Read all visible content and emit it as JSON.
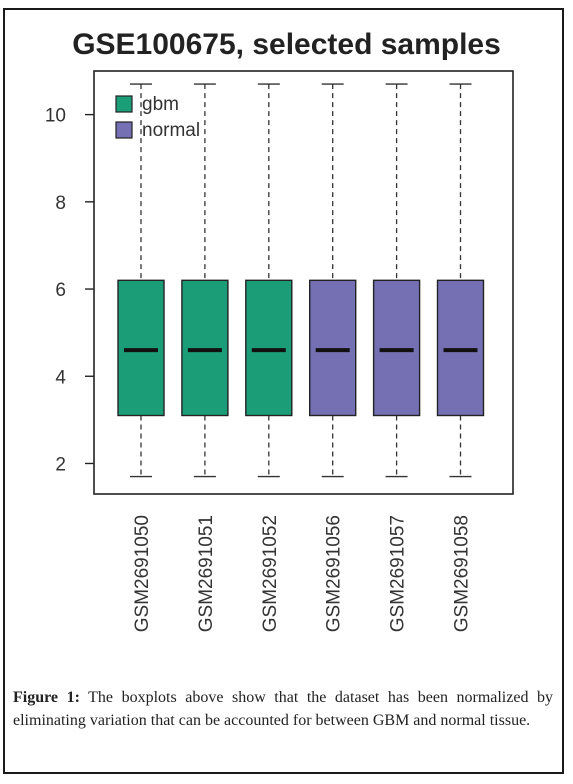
{
  "figure": {
    "caption_label": "Figure 1:",
    "caption_text": " The boxplots above show that the dataset has been normalized by eliminating variation that can be accounted for between GBM and normal tissue."
  },
  "chart_data": {
    "type": "boxplot",
    "title": "GSE100675, selected samples",
    "xlabel": "",
    "ylabel": "",
    "ylim": [
      1.3,
      11.0
    ],
    "yticks": [
      2,
      4,
      6,
      8,
      10
    ],
    "grid": false,
    "legend": {
      "position": "top-left",
      "entries": [
        {
          "label": "gbm",
          "color": "#1b9e77"
        },
        {
          "label": "normal",
          "color": "#7570b3"
        }
      ]
    },
    "categories": [
      "GSM2691050",
      "GSM2691051",
      "GSM2691052",
      "GSM2691056",
      "GSM2691057",
      "GSM2691058"
    ],
    "groups": [
      "gbm",
      "gbm",
      "gbm",
      "normal",
      "normal",
      "normal"
    ],
    "boxes": [
      {
        "min": 1.7,
        "q1": 3.1,
        "median": 4.6,
        "q3": 6.2,
        "max": 10.7
      },
      {
        "min": 1.7,
        "q1": 3.1,
        "median": 4.6,
        "q3": 6.2,
        "max": 10.7
      },
      {
        "min": 1.7,
        "q1": 3.1,
        "median": 4.6,
        "q3": 6.2,
        "max": 10.7
      },
      {
        "min": 1.7,
        "q1": 3.1,
        "median": 4.6,
        "q3": 6.2,
        "max": 10.7
      },
      {
        "min": 1.7,
        "q1": 3.1,
        "median": 4.6,
        "q3": 6.2,
        "max": 10.7
      },
      {
        "min": 1.7,
        "q1": 3.1,
        "median": 4.6,
        "q3": 6.2,
        "max": 10.7
      }
    ]
  }
}
